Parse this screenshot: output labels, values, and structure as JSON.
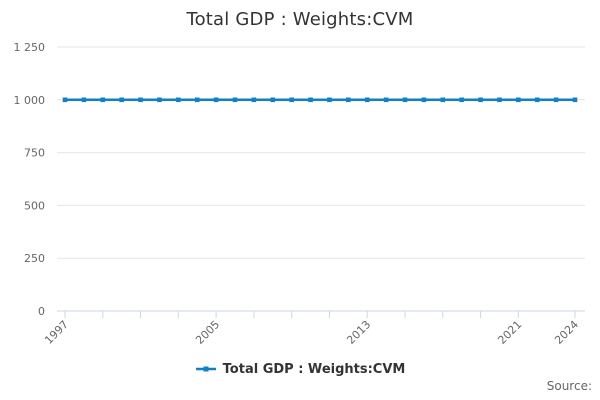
{
  "title": "Total GDP : Weights:CVM",
  "legend": {
    "label": "Total GDP : Weights:CVM"
  },
  "source_label": "Source:",
  "colors": {
    "series": "#1180c4",
    "gridline": "#e6e6e6",
    "axis_line": "#ccd6eb",
    "title_text": "#333333",
    "axis_text": "#666666",
    "legend_text": "#333333",
    "source_text": "#666666"
  },
  "chart_data": {
    "type": "line",
    "title": "Total GDP : Weights:CVM",
    "x": [
      1997,
      1998,
      1999,
      2000,
      2001,
      2002,
      2003,
      2004,
      2005,
      2006,
      2007,
      2008,
      2009,
      2010,
      2011,
      2012,
      2013,
      2014,
      2015,
      2016,
      2017,
      2018,
      2019,
      2020,
      2021,
      2022,
      2023,
      2024
    ],
    "series": [
      {
        "name": "Total GDP : Weights:CVM",
        "values": [
          1000,
          1000,
          1000,
          1000,
          1000,
          1000,
          1000,
          1000,
          1000,
          1000,
          1000,
          1000,
          1000,
          1000,
          1000,
          1000,
          1000,
          1000,
          1000,
          1000,
          1000,
          1000,
          1000,
          1000,
          1000,
          1000,
          1000,
          1000
        ]
      }
    ],
    "xlabel": "",
    "ylabel": "",
    "ylim": [
      0,
      1250
    ],
    "yticks": [
      0,
      250,
      500,
      750,
      1000,
      1250
    ],
    "ytick_labels": [
      "0",
      "250",
      "500",
      "750",
      "1 000",
      "1 250"
    ],
    "xticks": [
      1997,
      1999,
      2001,
      2003,
      2005,
      2007,
      2009,
      2011,
      2013,
      2015,
      2017,
      2019,
      2021,
      2024
    ],
    "xtick_labels_shown": [
      "1997",
      "2005",
      "2013",
      "2021",
      "2024"
    ],
    "xtick_label_years": [
      1997,
      2005,
      2013,
      2021,
      2024
    ],
    "xtick_label_rotation": -45,
    "grid": true,
    "marker": "square",
    "legend_position": "bottom"
  }
}
